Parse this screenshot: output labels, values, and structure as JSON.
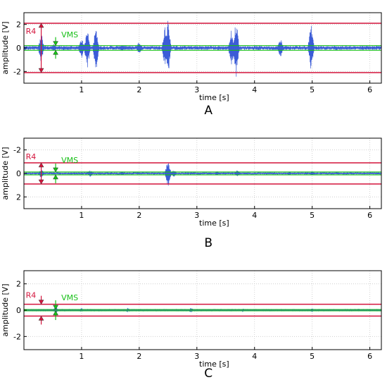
{
  "colors": {
    "threshold_r4": "#d4143c",
    "threshold_vms": "#18c018",
    "signal": "#1a3fd0",
    "signal_light": "#7f93a8",
    "grid": "#c8c8c8",
    "axis": "#000000"
  },
  "chart_data": [
    {
      "type": "line",
      "panel_label": "A",
      "xlabel": "time [s]",
      "ylabel": "amplitude [V]",
      "xlim": [
        0,
        6.2
      ],
      "ylim": [
        -3,
        3
      ],
      "xticks": [
        1,
        2,
        3,
        4,
        5,
        6
      ],
      "yticks": [
        2,
        0,
        -2
      ],
      "ytick_labels": [
        "2",
        "0",
        "-2"
      ],
      "y_inverted": false,
      "grid": true,
      "r4_label": "R4",
      "vms_label": "VMS",
      "r4_level": 2.1,
      "vms_level": 0.2,
      "noise_level": 0.12,
      "bursts": [
        {
          "t": 0.3,
          "amp": 1.3
        },
        {
          "t": 0.52,
          "amp": 0.35
        },
        {
          "t": 1.0,
          "amp": 0.9
        },
        {
          "t": 1.1,
          "amp": 1.9
        },
        {
          "t": 1.25,
          "amp": 2.0
        },
        {
          "t": 1.7,
          "amp": 0.3
        },
        {
          "t": 2.0,
          "amp": 0.6
        },
        {
          "t": 2.45,
          "amp": 2.0
        },
        {
          "t": 2.5,
          "amp": 2.5
        },
        {
          "t": 3.6,
          "amp": 1.6
        },
        {
          "t": 3.68,
          "amp": 2.6
        },
        {
          "t": 4.45,
          "amp": 0.9
        },
        {
          "t": 4.98,
          "amp": 2.1
        }
      ]
    },
    {
      "type": "line",
      "panel_label": "B",
      "xlabel": "time [s]",
      "ylabel": "amplitude [V]",
      "xlim": [
        0,
        6.2
      ],
      "ylim": [
        -3,
        3
      ],
      "xticks": [
        1,
        2,
        3,
        4,
        5,
        6
      ],
      "yticks": [
        -2,
        0,
        2
      ],
      "ytick_labels": [
        "-2",
        "0",
        "2"
      ],
      "y_inverted": true,
      "grid": true,
      "r4_label": "R4",
      "vms_label": "VMS",
      "r4_level": 0.9,
      "vms_level": 0.12,
      "noise_level": 0.06,
      "bursts": [
        {
          "t": 0.3,
          "amp": 0.4
        },
        {
          "t": 1.15,
          "amp": 0.3
        },
        {
          "t": 1.7,
          "amp": 0.15
        },
        {
          "t": 2.5,
          "amp": 1.2
        },
        {
          "t": 2.6,
          "amp": 0.3
        },
        {
          "t": 3.35,
          "amp": 0.2
        },
        {
          "t": 3.7,
          "amp": 0.3
        },
        {
          "t": 4.6,
          "amp": 0.15
        },
        {
          "t": 5.0,
          "amp": 0.2
        }
      ]
    },
    {
      "type": "line",
      "panel_label": "C",
      "xlabel": "time [s]",
      "ylabel": "amplitude [V]",
      "xlim": [
        0,
        6.2
      ],
      "ylim": [
        -3,
        3
      ],
      "xticks": [
        1,
        2,
        3,
        4,
        5,
        6
      ],
      "yticks": [
        2,
        0,
        -2
      ],
      "ytick_labels": [
        "2",
        "0",
        "-2"
      ],
      "y_inverted": false,
      "grid": true,
      "r4_label": "R4",
      "vms_label": "VMS",
      "r4_level": 0.45,
      "vms_level": 0.05,
      "noise_level": 0.04,
      "bursts": [
        {
          "t": 0.55,
          "amp": 0.3
        },
        {
          "t": 1.0,
          "amp": 0.15
        },
        {
          "t": 1.8,
          "amp": 0.18
        },
        {
          "t": 2.9,
          "amp": 0.2
        },
        {
          "t": 3.8,
          "amp": 0.15
        },
        {
          "t": 5.0,
          "amp": 0.15
        },
        {
          "t": 5.8,
          "amp": 0.12
        }
      ]
    }
  ]
}
